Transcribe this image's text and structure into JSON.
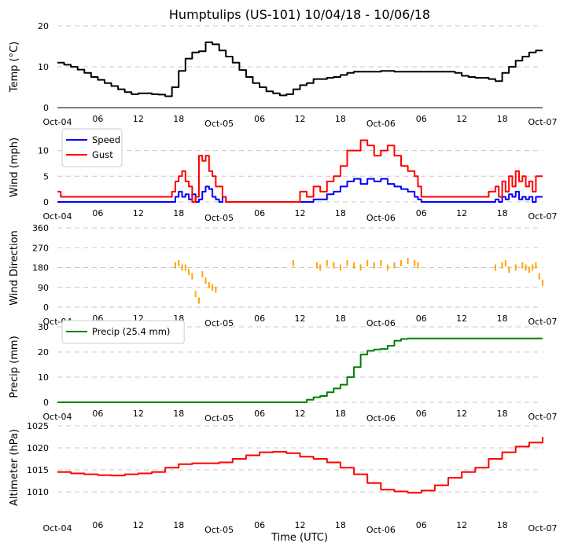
{
  "figure": {
    "title": "Humptulips (US-101) 10/04/18 - 10/06/18",
    "xlabel": "Time (UTC)",
    "x_tick_labels": [
      "Oct-04",
      "06",
      "12",
      "18",
      "Oct-05",
      "06",
      "12",
      "18",
      "Oct-06",
      "06",
      "12",
      "18",
      "Oct-07"
    ],
    "x_tick_hours": [
      0,
      6,
      12,
      18,
      24,
      30,
      36,
      42,
      48,
      54,
      60,
      66,
      72
    ]
  },
  "colors": {
    "temp": "#000000",
    "speed": "#0000ff",
    "gust": "#ff0000",
    "direction": "#ffa500",
    "precip": "#008000",
    "altimeter": "#ff0000",
    "grid": "#c8c8c8"
  },
  "chart_data": [
    {
      "type": "line",
      "id": "temp",
      "ylabel": "Temp (°C)",
      "ylim": [
        0,
        20
      ],
      "yticks": [
        0,
        10,
        20
      ],
      "grid": true,
      "x_unit": "hours since Oct-04 00 UTC",
      "series": [
        {
          "name": "Temp",
          "x": [
            0,
            1,
            2,
            3,
            4,
            5,
            6,
            7,
            8,
            9,
            10,
            11,
            12,
            13,
            14,
            15,
            16,
            17,
            18,
            19,
            20,
            21,
            22,
            23,
            24,
            25,
            26,
            27,
            28,
            29,
            30,
            31,
            32,
            33,
            34,
            35,
            36,
            37,
            38,
            39,
            40,
            41,
            42,
            43,
            44,
            45,
            46,
            47,
            48,
            49,
            50,
            51,
            52,
            53,
            54,
            55,
            56,
            57,
            58,
            59,
            60,
            61,
            62,
            63,
            64,
            65,
            66,
            67,
            68,
            69,
            70,
            71,
            72
          ],
          "values": [
            11,
            10.5,
            10,
            9.3,
            8.5,
            7.5,
            6.8,
            6,
            5.3,
            4.5,
            3.8,
            3.3,
            3.5,
            3.5,
            3.3,
            3.2,
            2.8,
            5,
            9,
            12,
            13.5,
            13.8,
            16,
            15.5,
            14,
            12.5,
            11,
            9.2,
            7.5,
            6,
            5,
            4,
            3.5,
            3,
            3.3,
            4.5,
            5.5,
            6,
            7,
            7,
            7.3,
            7.5,
            8,
            8.5,
            8.8,
            8.8,
            8.8,
            8.8,
            9,
            9,
            8.8,
            8.8,
            8.8,
            8.8,
            8.8,
            8.8,
            8.8,
            8.8,
            8.8,
            8.5,
            7.8,
            7.5,
            7.3,
            7.3,
            7,
            6.5,
            8.5,
            10,
            11.5,
            12.5,
            13.5,
            14,
            14
          ]
        }
      ]
    },
    {
      "type": "line",
      "id": "wind",
      "ylabel": "Wind (mph)",
      "ylim": [
        0,
        13
      ],
      "yticks": [
        0,
        5,
        10
      ],
      "grid": true,
      "legend_position": "top-left",
      "x_unit": "hours since Oct-04 00 UTC",
      "series": [
        {
          "name": "Speed",
          "x": [
            0,
            17,
            17.5,
            18,
            18.5,
            19,
            19.5,
            20,
            20.5,
            21,
            21.5,
            22,
            22.5,
            23,
            23.5,
            24,
            24.5,
            25,
            36,
            38,
            40,
            41,
            42,
            43,
            44,
            45,
            46,
            47,
            48,
            49,
            50,
            51,
            52,
            53,
            53.5,
            54,
            64,
            65,
            65.5,
            66,
            66.5,
            67,
            67.5,
            68,
            68.5,
            69,
            69.5,
            70,
            70.5,
            71,
            72
          ],
          "values": [
            0,
            0,
            1,
            2,
            1,
            1.5,
            0.5,
            1.5,
            0,
            0.5,
            2,
            3,
            2.5,
            1,
            0.5,
            0,
            1,
            0,
            0,
            0.5,
            1.5,
            2,
            3,
            4,
            4.5,
            3.5,
            4.5,
            4,
            4.5,
            3.5,
            3,
            2.5,
            2,
            1,
            0.5,
            0,
            0,
            0.5,
            0,
            1,
            0.5,
            1.5,
            1,
            2,
            0.5,
            1,
            0.5,
            1,
            0,
            1,
            1
          ]
        },
        {
          "name": "Gust",
          "x": [
            0,
            0.5,
            17,
            17.5,
            18,
            18.5,
            19,
            19.5,
            20,
            20.5,
            21,
            21.5,
            22,
            22.5,
            23,
            23.5,
            24,
            24.5,
            25,
            36,
            37,
            38,
            39,
            40,
            41,
            42,
            43,
            44,
            45,
            46,
            47,
            48,
            49,
            50,
            51,
            52,
            53,
            53.5,
            54,
            64,
            65,
            65.5,
            66,
            66.5,
            67,
            67.5,
            68,
            68.5,
            69,
            69.5,
            70,
            70.5,
            71,
            72
          ],
          "values": [
            2,
            1,
            2,
            4,
            5,
            6,
            4,
            3,
            0,
            1,
            9,
            8,
            9,
            6,
            5,
            3,
            3,
            1,
            0,
            2,
            1,
            3,
            2,
            4,
            5,
            7,
            10,
            10,
            12,
            11,
            9,
            10,
            11,
            9,
            7,
            6,
            5,
            3,
            1,
            2,
            3,
            1,
            4,
            2,
            5,
            3,
            6,
            4,
            5,
            3,
            4,
            2,
            5,
            5
          ]
        }
      ]
    },
    {
      "type": "scatter",
      "id": "direction",
      "ylabel": "Wind Direction",
      "ylim": [
        0,
        360
      ],
      "yticks": [
        0,
        90,
        180,
        270,
        360
      ],
      "grid": true,
      "x_unit": "hours since Oct-04 00 UTC",
      "series": [
        {
          "name": "Direction",
          "x": [
            17.5,
            18,
            18.5,
            19,
            19.5,
            20,
            20.5,
            21,
            21.5,
            22,
            22.5,
            23,
            23.5,
            35,
            38.5,
            39,
            40,
            41,
            42,
            43,
            44,
            45,
            46,
            47,
            48,
            49,
            50,
            51,
            52,
            53,
            53.5,
            65,
            66,
            66.5,
            67,
            68,
            69,
            69.5,
            70,
            70.5,
            71,
            71.5,
            72
          ],
          "values": [
            190,
            200,
            180,
            180,
            160,
            140,
            60,
            30,
            150,
            120,
            100,
            90,
            80,
            200,
            190,
            180,
            200,
            190,
            180,
            200,
            190,
            180,
            200,
            190,
            200,
            180,
            190,
            200,
            210,
            200,
            190,
            180,
            190,
            200,
            170,
            180,
            190,
            180,
            170,
            180,
            190,
            140,
            110
          ]
        }
      ]
    },
    {
      "type": "line",
      "id": "precip",
      "ylabel": "Precip (mm)",
      "ylim": [
        0,
        30
      ],
      "yticks": [
        0,
        10,
        20,
        30
      ],
      "grid": true,
      "legend_position": "top-left",
      "x_unit": "hours since Oct-04 00 UTC",
      "series": [
        {
          "name": "Precip (25.4 mm)",
          "x": [
            0,
            36,
            37,
            38,
            39,
            40,
            41,
            42,
            43,
            44,
            45,
            46,
            47,
            48,
            49,
            50,
            51,
            52,
            72
          ],
          "values": [
            0,
            0,
            1,
            2,
            2.5,
            4,
            5.5,
            7,
            10,
            14,
            19,
            20.5,
            21,
            21.2,
            22.5,
            24.5,
            25.2,
            25.4,
            25.4
          ]
        }
      ]
    },
    {
      "type": "line",
      "id": "altimeter",
      "ylabel": "Altimeter (hPa)",
      "ylim": [
        1005,
        1025
      ],
      "yticks": [
        1010,
        1015,
        1020,
        1025
      ],
      "grid": true,
      "x_unit": "hours since Oct-04 00 UTC",
      "series": [
        {
          "name": "Altimeter",
          "x": [
            0,
            2,
            4,
            6,
            8,
            10,
            12,
            14,
            16,
            18,
            20,
            22,
            24,
            26,
            28,
            30,
            32,
            34,
            36,
            38,
            40,
            42,
            44,
            46,
            48,
            50,
            52,
            54,
            56,
            58,
            60,
            62,
            64,
            66,
            68,
            70,
            72
          ],
          "values": [
            1014.5,
            1014.2,
            1014,
            1013.8,
            1013.7,
            1014,
            1014.2,
            1014.5,
            1015.5,
            1016.3,
            1016.5,
            1016.5,
            1016.7,
            1017.5,
            1018.3,
            1019,
            1019.1,
            1018.8,
            1018,
            1017.5,
            1016.7,
            1015.5,
            1014,
            1012,
            1010.5,
            1010.1,
            1009.8,
            1010.3,
            1011.5,
            1013.2,
            1014.5,
            1015.5,
            1017.5,
            1019,
            1020.3,
            1021.2,
            1022.5
          ]
        }
      ]
    }
  ]
}
